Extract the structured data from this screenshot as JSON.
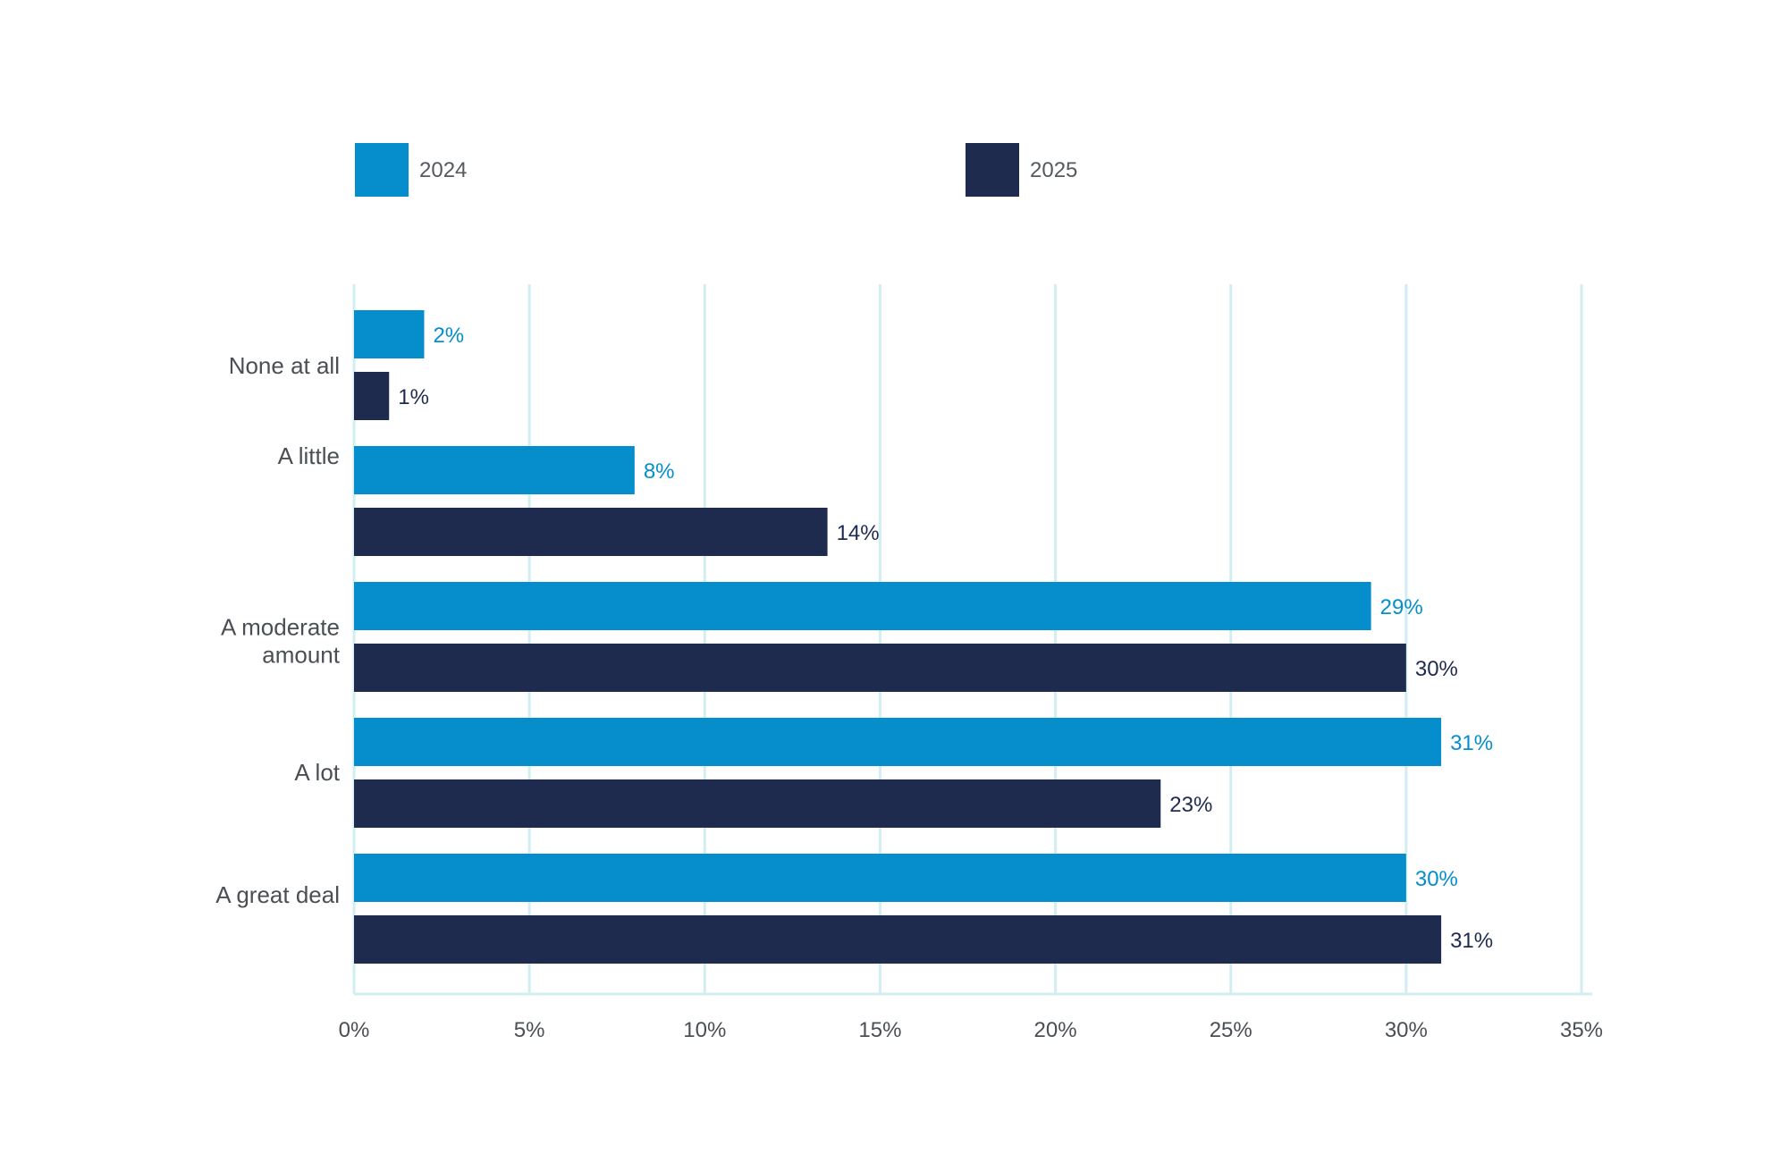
{
  "chart_data": {
    "type": "bar",
    "orientation": "horizontal",
    "categories": [
      "None at all",
      "A little",
      "A moderate amount",
      "A lot",
      "A great deal"
    ],
    "category_display_lines": [
      [
        "None at all"
      ],
      [
        "A little"
      ],
      [
        "A moderate",
        "amount"
      ],
      [
        "A lot"
      ],
      [
        "A great deal"
      ]
    ],
    "series": [
      {
        "name": "2024",
        "color": "#058ecb",
        "values": [
          2,
          8,
          29,
          31,
          30
        ],
        "labels": [
          "2%",
          "8%",
          "29%",
          "31%",
          "30%"
        ]
      },
      {
        "name": "2025",
        "color": "#1f2a4f",
        "values": [
          1,
          13.5,
          30,
          23,
          31
        ],
        "labels": [
          "1%",
          "14%",
          "30%",
          "23%",
          "31%"
        ]
      }
    ],
    "xlim": [
      0,
      35
    ],
    "ticks": [
      0,
      5,
      10,
      15,
      20,
      25,
      30,
      35
    ],
    "tick_labels": [
      "0%",
      "5%",
      "10%",
      "15%",
      "20%",
      "25%",
      "30%",
      "35%"
    ],
    "grid": true,
    "grid_color": "#d2eef3",
    "legend_position": "top",
    "title": "",
    "xlabel": "",
    "ylabel": ""
  }
}
